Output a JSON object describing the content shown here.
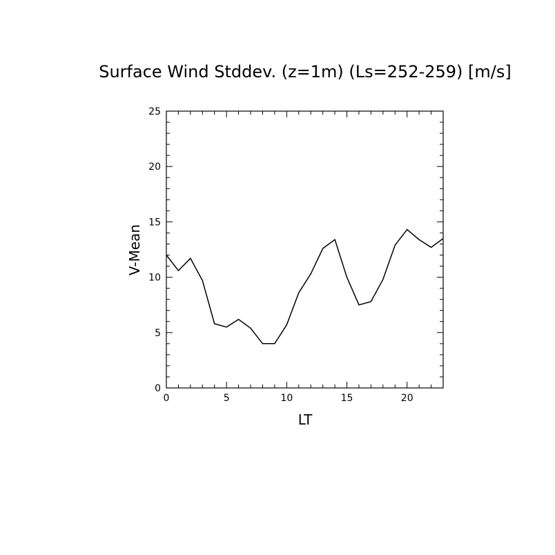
{
  "chart_data": {
    "type": "line",
    "title": "Surface Wind Stddev. (z=1m) (Ls=252-259) [m/s]",
    "xlabel": "LT",
    "ylabel": "V-Mean",
    "xlim": [
      0,
      23
    ],
    "ylim": [
      0,
      25
    ],
    "x_ticks": [
      0,
      5,
      10,
      15,
      20
    ],
    "y_ticks": [
      0,
      5,
      10,
      15,
      20,
      25
    ],
    "x_tick_labels": [
      "0",
      "5",
      "10",
      "15",
      "20"
    ],
    "y_tick_labels": [
      "0",
      "5",
      "10",
      "15",
      "20",
      "25"
    ],
    "grid": false,
    "line_color": "#000000",
    "series": [
      {
        "x": [
          0,
          1,
          2,
          3,
          4,
          5,
          6,
          7,
          8,
          9,
          10,
          11,
          12,
          13,
          14,
          15,
          16,
          17,
          18,
          19,
          20,
          21,
          22,
          23
        ],
        "values": [
          12.0,
          10.6,
          11.7,
          9.7,
          5.8,
          5.5,
          6.2,
          5.4,
          4.0,
          4.0,
          5.7,
          8.6,
          10.3,
          12.6,
          13.4,
          10.0,
          7.5,
          7.8,
          9.8,
          12.9,
          14.3,
          13.4,
          12.7,
          13.5
        ]
      }
    ]
  }
}
